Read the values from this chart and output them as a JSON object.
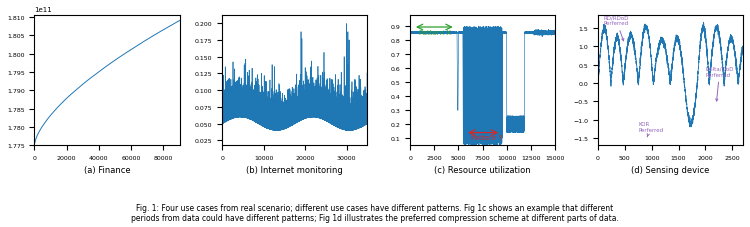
{
  "fig_width": 7.5,
  "fig_height": 2.28,
  "dpi": 100,
  "subplot_titles": [
    "(a) Finance",
    "(b) Internet monitoring",
    "(c) Resource utilization",
    "(d) Sensing device"
  ],
  "line_color": "#1f77b4",
  "green_color": "#2ca02c",
  "red_color": "#d62728",
  "magenta_color": "#9467bd",
  "caption_line1": "Fig. 1: Four use cases from real scenario; different use cases have different patterns. Fig 1c shows an example that different",
  "caption_line2": "periods from data could have different patterns; Fig 1d illustrates the preferred compression scheme at different parts of data."
}
